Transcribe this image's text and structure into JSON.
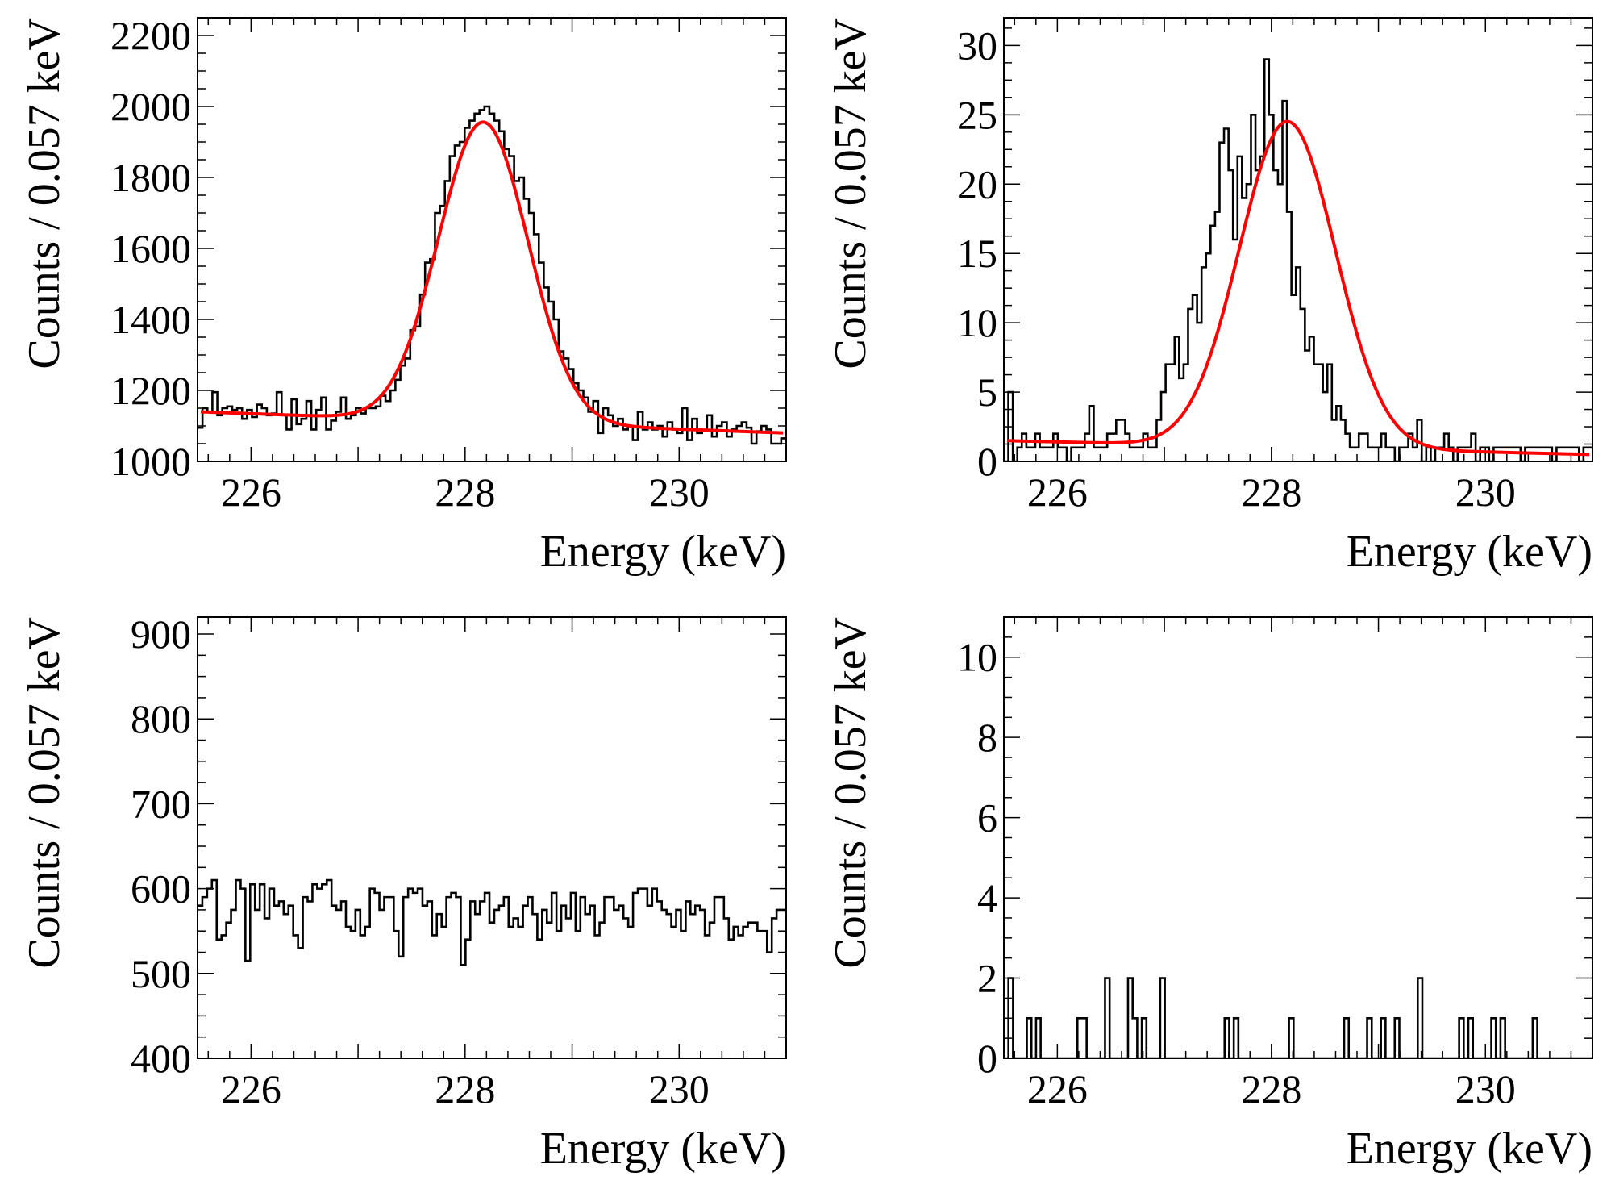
{
  "chart_data": [
    {
      "panel": "top-left",
      "type": "histogram",
      "title": "",
      "xlabel": "Energy (keV)",
      "ylabel": "Counts / 0.057 keV",
      "xlim": [
        225.5,
        231.0
      ],
      "ylim": [
        1000,
        2250
      ],
      "xticks": [
        226,
        228,
        230
      ],
      "yticks": [
        1000,
        1200,
        1400,
        1600,
        1800,
        2000,
        2200
      ],
      "bin_width": 0.057,
      "series": [
        {
          "kind": "histogram",
          "color": "#000000",
          "values": [
            1095,
            1150,
            1140,
            1195,
            1130,
            1150,
            1155,
            1145,
            1150,
            1120,
            1145,
            1125,
            1160,
            1150,
            1130,
            1135,
            1195,
            1130,
            1090,
            1175,
            1105,
            1120,
            1170,
            1090,
            1145,
            1180,
            1090,
            1115,
            1140,
            1180,
            1120,
            1130,
            1150,
            1135,
            1150,
            1150,
            1155,
            1185,
            1170,
            1200,
            1230,
            1270,
            1290,
            1370,
            1380,
            1470,
            1560,
            1570,
            1700,
            1720,
            1790,
            1860,
            1890,
            1900,
            1940,
            1960,
            1980,
            1990,
            2000,
            1980,
            1960,
            1930,
            1880,
            1860,
            1790,
            1800,
            1740,
            1700,
            1640,
            1560,
            1490,
            1450,
            1400,
            1310,
            1290,
            1260,
            1220,
            1200,
            1180,
            1140,
            1170,
            1080,
            1150,
            1130,
            1100,
            1120,
            1090,
            1100,
            1060,
            1140,
            1090,
            1110,
            1090,
            1100,
            1070,
            1110,
            1090,
            1080,
            1150,
            1060,
            1120,
            1080,
            1085,
            1130,
            1070,
            1100,
            1110,
            1070,
            1090,
            1100,
            1110,
            1095,
            1050,
            1085,
            1100,
            1090,
            1050,
            1050,
            1065
          ]
        },
        {
          "kind": "fit",
          "color": "#ff0000",
          "model": "gaussian + linear background",
          "baseline_left": 1140,
          "baseline_right": 1080,
          "amplitude": 845,
          "mean": 228.17,
          "sigma": 0.42
        }
      ]
    },
    {
      "panel": "top-right",
      "type": "histogram",
      "title": "",
      "xlabel": "Energy (keV)",
      "ylabel": "Counts / 0.057 keV",
      "xlim": [
        225.5,
        231.0
      ],
      "ylim": [
        0,
        32
      ],
      "xticks": [
        226,
        228,
        230
      ],
      "yticks": [
        0,
        5,
        10,
        15,
        20,
        25,
        30
      ],
      "bin_width": 0.057,
      "series": [
        {
          "kind": "histogram",
          "color": "#000000",
          "values": [
            0,
            5,
            0,
            1,
            2,
            1,
            1,
            2,
            1,
            1,
            1,
            2,
            1,
            1,
            0,
            1,
            1,
            1,
            2,
            4,
            1,
            1,
            1,
            2,
            2,
            3,
            3,
            2,
            1,
            1,
            1,
            2,
            1,
            1,
            3,
            5,
            7,
            7,
            9,
            6,
            7,
            11,
            12,
            10,
            14,
            15,
            17,
            18,
            23,
            24,
            21,
            16,
            22,
            19,
            20,
            25,
            21,
            22,
            29,
            25,
            21,
            20,
            26,
            18,
            12,
            14,
            11,
            8,
            9,
            7,
            7,
            5,
            7,
            3,
            4,
            3,
            2,
            1,
            1,
            2,
            2,
            1,
            1,
            1,
            2,
            1,
            1,
            0,
            1,
            1,
            2,
            1,
            3,
            0,
            1,
            0,
            1,
            1,
            2,
            1,
            0,
            1,
            1,
            1,
            2,
            0,
            1,
            1,
            0,
            1,
            1,
            1,
            1,
            1,
            1,
            0,
            1,
            1,
            1,
            1,
            1,
            1,
            0,
            1,
            1,
            1,
            1,
            1,
            0,
            1,
            1
          ]
        },
        {
          "kind": "fit",
          "color": "#ff0000",
          "model": "gaussian + linear background",
          "baseline_left": 1.5,
          "baseline_right": 0.5,
          "amplitude": 23.5,
          "mean": 228.15,
          "sigma": 0.45
        }
      ]
    },
    {
      "panel": "bottom-left",
      "type": "histogram",
      "title": "",
      "xlabel": "Energy (keV)",
      "ylabel": "Counts / 0.057 keV",
      "xlim": [
        225.5,
        231.0
      ],
      "ylim": [
        400,
        920
      ],
      "xticks": [
        226,
        228,
        230
      ],
      "yticks": [
        400,
        500,
        600,
        700,
        800,
        900
      ],
      "bin_width": 0.057,
      "series": [
        {
          "kind": "histogram",
          "color": "#000000",
          "values": [
            580,
            590,
            600,
            610,
            540,
            545,
            560,
            575,
            610,
            600,
            515,
            605,
            575,
            605,
            565,
            600,
            580,
            585,
            570,
            580,
            545,
            530,
            590,
            585,
            605,
            600,
            605,
            610,
            580,
            575,
            585,
            555,
            550,
            575,
            545,
            555,
            600,
            595,
            575,
            590,
            590,
            550,
            520,
            590,
            600,
            595,
            600,
            580,
            585,
            545,
            570,
            555,
            590,
            595,
            590,
            510,
            540,
            585,
            570,
            585,
            595,
            560,
            575,
            580,
            590,
            555,
            565,
            555,
            580,
            590,
            570,
            540,
            575,
            560,
            595,
            550,
            580,
            565,
            595,
            550,
            590,
            570,
            580,
            545,
            560,
            590,
            590,
            575,
            580,
            565,
            555,
            595,
            600,
            600,
            580,
            600,
            585,
            575,
            570,
            555,
            575,
            550,
            585,
            570,
            580,
            575,
            545,
            560,
            590,
            590,
            565,
            540,
            555,
            545,
            555,
            560,
            560,
            550,
            550,
            525,
            565,
            575,
            575
          ]
        }
      ]
    },
    {
      "panel": "bottom-right",
      "type": "histogram",
      "title": "",
      "xlabel": "Energy (keV)",
      "ylabel": "Counts / 0.057 keV",
      "xlim": [
        225.5,
        231.0
      ],
      "ylim": [
        0,
        11
      ],
      "xticks": [
        226,
        228,
        230
      ],
      "yticks": [
        0,
        2,
        4,
        6,
        8,
        10
      ],
      "bin_width": 0.057,
      "series": [
        {
          "kind": "histogram",
          "color": "#000000",
          "values": [
            0,
            2,
            0,
            0,
            0,
            1,
            0,
            1,
            0,
            0,
            0,
            0,
            0,
            0,
            0,
            0,
            1,
            1,
            0,
            0,
            0,
            0,
            2,
            0,
            0,
            0,
            0,
            2,
            1,
            0,
            1,
            0,
            0,
            0,
            2,
            0,
            0,
            0,
            0,
            0,
            0,
            0,
            0,
            0,
            0,
            0,
            0,
            0,
            1,
            0,
            1,
            0,
            0,
            0,
            0,
            0,
            0,
            0,
            0,
            0,
            0,
            0,
            1,
            0,
            0,
            0,
            0,
            0,
            0,
            0,
            0,
            0,
            0,
            0,
            1,
            0,
            0,
            0,
            0,
            1,
            0,
            0,
            1,
            0,
            0,
            1,
            0,
            0,
            0,
            0,
            2,
            0,
            0,
            0,
            0,
            0,
            0,
            0,
            0,
            1,
            0,
            1,
            0,
            0,
            0,
            0,
            1,
            0,
            1,
            0,
            0,
            0,
            0,
            0,
            0,
            1,
            0,
            0,
            0,
            0,
            0,
            0,
            0,
            0,
            0,
            0,
            0,
            0
          ]
        }
      ]
    }
  ]
}
